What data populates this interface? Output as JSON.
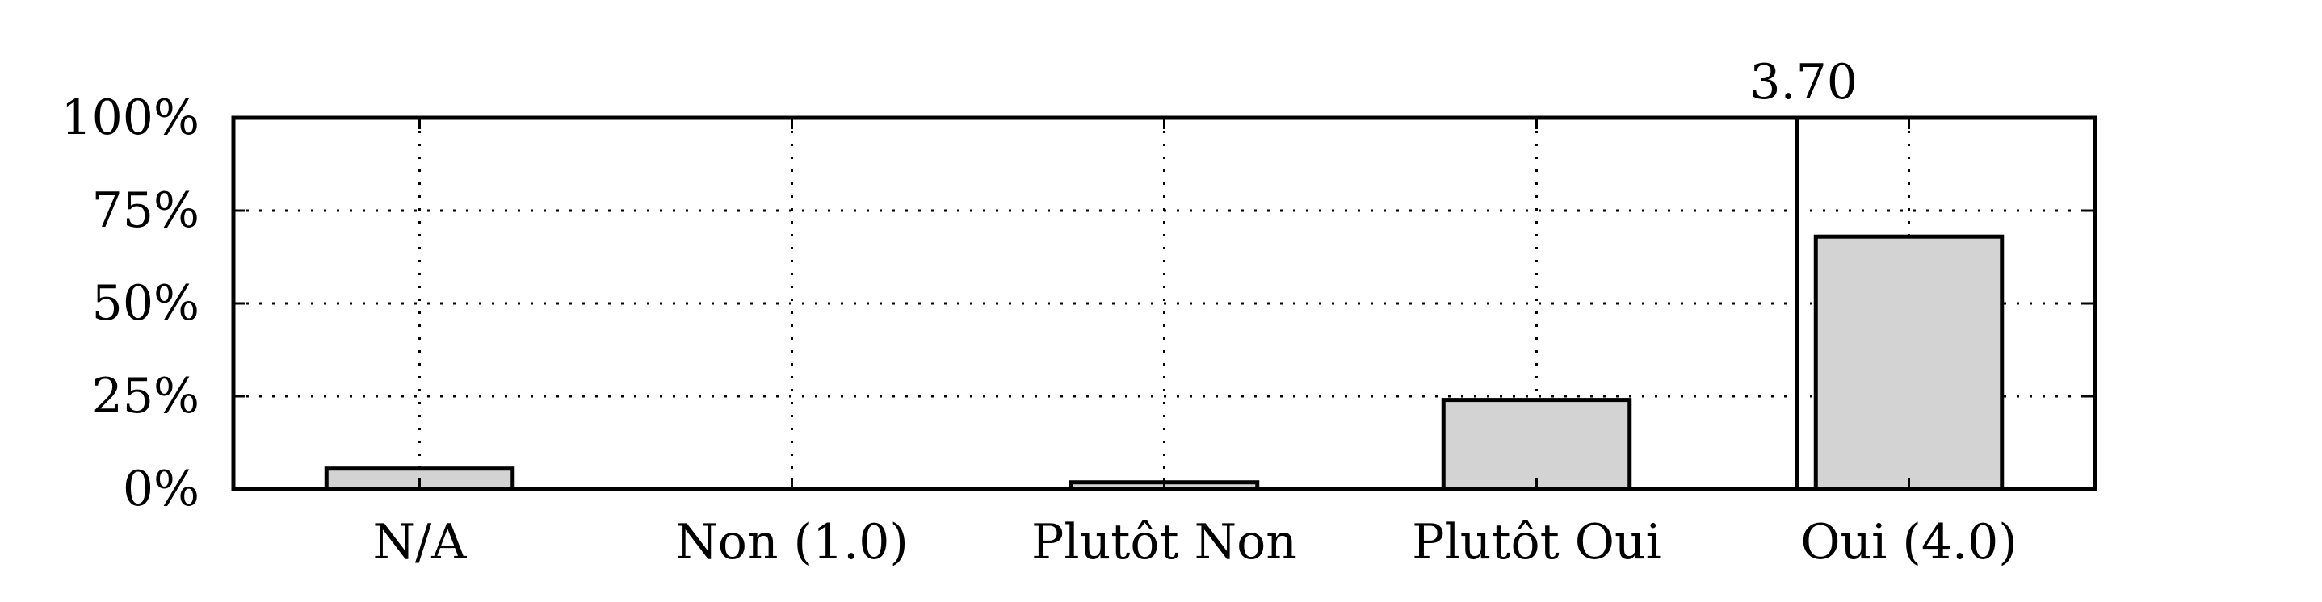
{
  "chart_data": {
    "type": "bar",
    "categories": [
      "N/A",
      "Non (1.0)",
      "Plutôt Non",
      "Plutôt Oui",
      "Oui (4.0)"
    ],
    "values": [
      5.5,
      0,
      1.8,
      24,
      68
    ],
    "ylim": [
      0,
      100
    ],
    "yticks": [
      0,
      25,
      50,
      75,
      100
    ],
    "ytick_labels": [
      "0%",
      "25%",
      "50%",
      "75%",
      "100%"
    ],
    "grid": true,
    "bar_color": "#d3d3d3",
    "edge_color": "#000000",
    "marker": {
      "x": 3.7,
      "label": "3.70"
    }
  }
}
